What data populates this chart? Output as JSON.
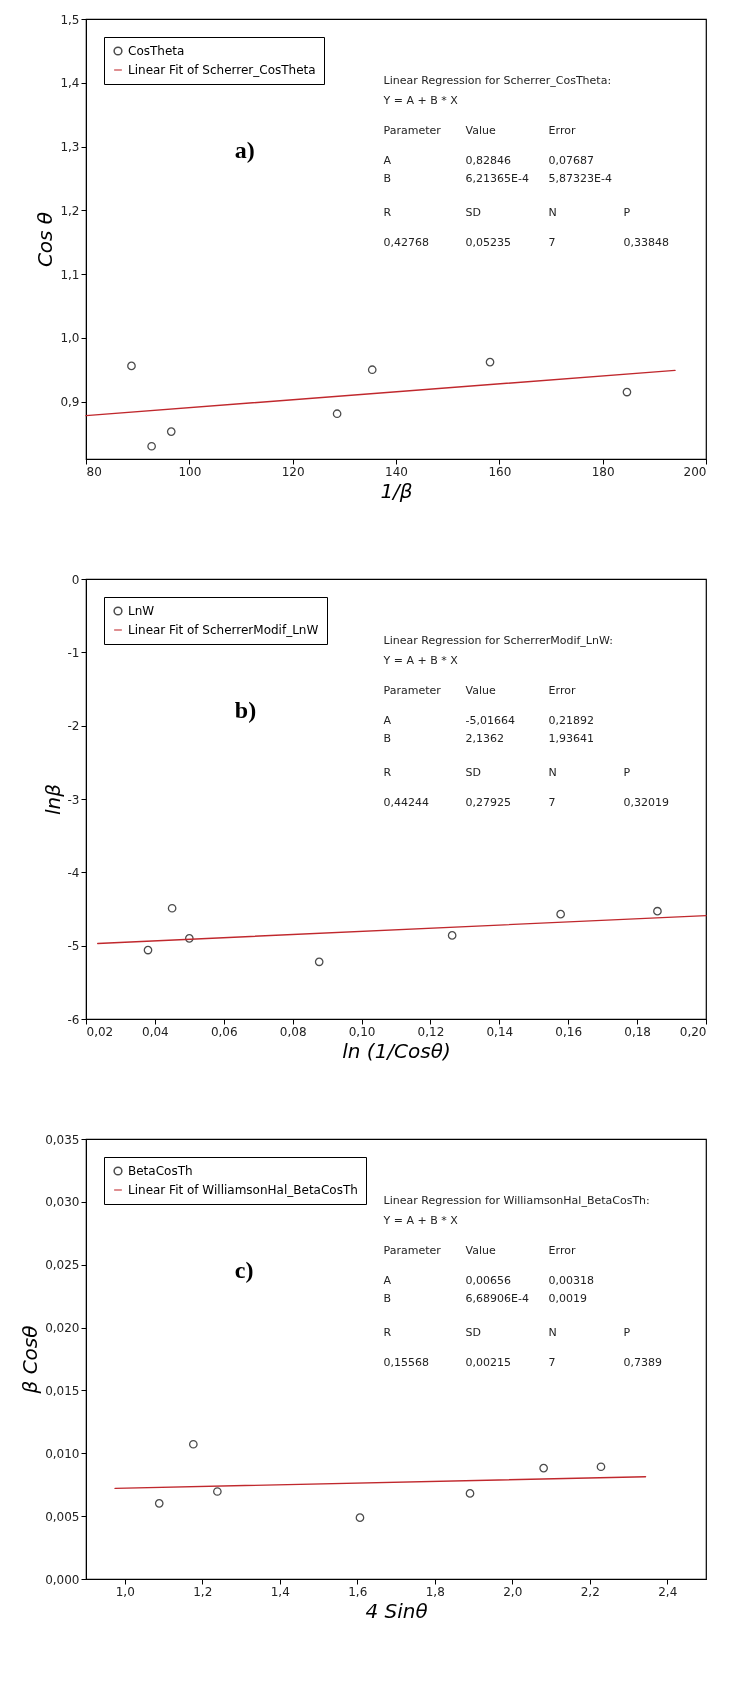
{
  "chart_data": [
    {
      "type": "scatter",
      "xlabel": "1/β",
      "ylabel": "Cos θ",
      "xlim": [
        80,
        200
      ],
      "xticks": [
        80,
        100,
        120,
        140,
        160,
        180,
        200
      ],
      "ylim": [
        0.81,
        1.5
      ],
      "yticks": [
        {
          "value": 0.9,
          "label": "0,9"
        },
        {
          "value": 1.0,
          "label": "1,0"
        },
        {
          "value": 1.1,
          "label": "1,1"
        },
        {
          "value": 1.2,
          "label": "1,2"
        },
        {
          "value": 1.3,
          "label": "1,3"
        },
        {
          "value": 1.4,
          "label": "1,4"
        },
        {
          "value": 1.5,
          "label": "1,5"
        }
      ],
      "legend": "top left",
      "annotations": [
        "a)",
        "Linear Regression for Scherrer_CosTheta:",
        "Y = A + B * X",
        "Parameter  Value  Error",
        "A  0,82846  0,07687",
        "B  6,21365E-4  5,87323E-4",
        "R  SD  N  P",
        "0,42768  0,05235  7  0,33848"
      ],
      "series": [
        {
          "name": "CosTheta",
          "color": "#000000",
          "marker": "circle",
          "x": [
            88.8,
            92.7,
            96.5,
            128.6,
            135.4,
            158.2,
            184.7
          ],
          "values": [
            0.956,
            0.83,
            0.853,
            0.881,
            0.95,
            0.962,
            0.915
          ]
        },
        {
          "name": "Linear Fit of Scherrer_CosTheta",
          "type": "line",
          "color": "#c0282d",
          "x": [
            80,
            194
          ],
          "values": [
            0.878,
            0.949
          ]
        }
      ]
    },
    {
      "type": "scatter",
      "xlabel": "ln (1/Cosθ)",
      "ylabel": "lnβ",
      "xlim": [
        0.02,
        0.2
      ],
      "xticks": [
        {
          "value": 0.02,
          "label": "0,02"
        },
        {
          "value": 0.04,
          "label": "0,04"
        },
        {
          "value": 0.06,
          "label": "0,06"
        },
        {
          "value": 0.08,
          "label": "0,08"
        },
        {
          "value": 0.1,
          "label": "0,10"
        },
        {
          "value": 0.12,
          "label": "0,12"
        },
        {
          "value": 0.14,
          "label": "0,14"
        },
        {
          "value": 0.16,
          "label": "0,16"
        },
        {
          "value": 0.18,
          "label": "0,18"
        },
        {
          "value": 0.2,
          "label": "0,20"
        }
      ],
      "ylim": [
        -6,
        0
      ],
      "yticks": [
        -6,
        -5,
        -4,
        -3,
        -2,
        -1,
        0
      ],
      "legend": "top left",
      "annotations": [
        "b)",
        "Linear Regression for ScherrerModif_LnW:",
        "Y = A + B * X",
        "Parameter  Value  Error",
        "A  -5,01664  0,21892",
        "B  2,1362  1,93641",
        "R  SD  N  P",
        "0,44244  0,27925  7  0,32019"
      ],
      "series": [
        {
          "name": "LnW",
          "color": "#000000",
          "marker": "circle",
          "x": [
            0.038,
            0.045,
            0.05,
            0.0877,
            0.1263,
            0.1578,
            0.1859
          ],
          "values": [
            -5.06,
            -4.49,
            -4.9,
            -5.22,
            -4.86,
            -4.57,
            -4.53
          ]
        },
        {
          "name": "Linear Fit of ScherrerModif_LnW",
          "type": "line",
          "color": "#c0282d",
          "x": [
            0.0234,
            0.2
          ],
          "values": [
            -4.97,
            -4.59
          ]
        }
      ]
    },
    {
      "type": "scatter",
      "xlabel": "4 Sinθ",
      "ylabel": "β Cosθ",
      "xlim": [
        0.9,
        2.5
      ],
      "xticks": [
        {
          "value": 1.0,
          "label": "1,0"
        },
        {
          "value": 1.2,
          "label": "1,2"
        },
        {
          "value": 1.4,
          "label": "1,4"
        },
        {
          "value": 1.6,
          "label": "1,6"
        },
        {
          "value": 1.8,
          "label": "1,8"
        },
        {
          "value": 2.0,
          "label": "2,0"
        },
        {
          "value": 2.2,
          "label": "2,2"
        },
        {
          "value": 2.4,
          "label": "2,4"
        }
      ],
      "ylim": [
        0,
        0.035
      ],
      "yticks": [
        {
          "value": 0,
          "label": "0,000"
        },
        {
          "value": 0.005,
          "label": "0,005"
        },
        {
          "value": 0.01,
          "label": "0,010"
        },
        {
          "value": 0.015,
          "label": "0,015"
        },
        {
          "value": 0.02,
          "label": "0,020"
        },
        {
          "value": 0.025,
          "label": "0,025"
        },
        {
          "value": 0.03,
          "label": "0,030"
        },
        {
          "value": 0.035,
          "label": "0,035"
        }
      ],
      "legend": "top left",
      "annotations": [
        "c)",
        "Linear Regression for WilliamsonHal_BetaCosTh:",
        "Y = A + B * X",
        "Parameter  Value  Error",
        "A  0,00656  0,00318",
        "B  6,68906E-4  0,0019",
        "R  SD  N  P",
        "0,15568  0,00215  7  0,7389"
      ],
      "series": [
        {
          "name": "BetaCosTh",
          "color": "#000000",
          "marker": "circle",
          "x": [
            1.089,
            1.177,
            1.239,
            1.607,
            1.891,
            2.081,
            2.229
          ],
          "values": [
            0.00602,
            0.01072,
            0.00696,
            0.00488,
            0.00681,
            0.00882,
            0.00893
          ]
        },
        {
          "name": "Linear Fit of WilliamsonHal_BetaCosTh",
          "type": "line",
          "color": "#c0282d",
          "x": [
            0.975,
            2.344
          ],
          "values": [
            0.00721,
            0.00813
          ]
        }
      ]
    }
  ]
}
